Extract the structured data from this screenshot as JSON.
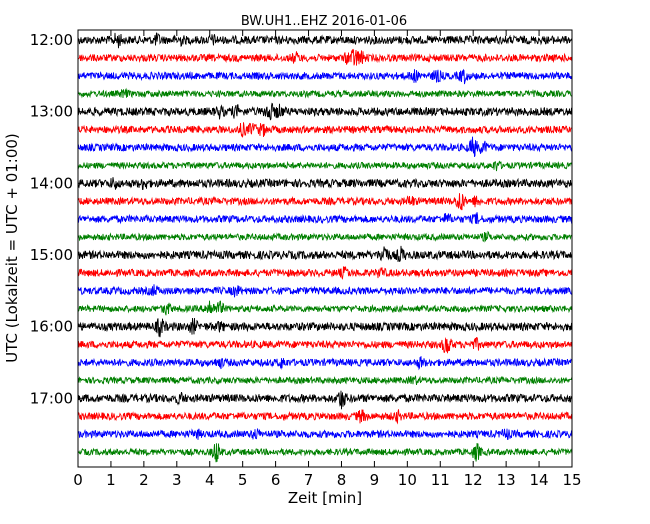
{
  "chart_data": {
    "type": "line",
    "title": "BW.UH1..EHZ 2016-01-06",
    "xlabel": "Zeit  [min]",
    "ylabel": "UTC (Lokalzeit = UTC + 01:00)",
    "xlim": [
      0,
      15
    ],
    "x_ticks": [
      "0",
      "1",
      "2",
      "3",
      "4",
      "5",
      "6",
      "7",
      "8",
      "9",
      "10",
      "11",
      "12",
      "13",
      "14",
      "15"
    ],
    "y_tick_labels": [
      "12:00",
      "13:00",
      "14:00",
      "15:00",
      "16:00",
      "17:00"
    ],
    "grid": false,
    "series_colors": [
      "#000000",
      "#ff0000",
      "#0000ff",
      "#008000"
    ],
    "traces": [
      {
        "start": "12:00",
        "color": "#000000",
        "amplitude": 0.45,
        "events": [
          [
            1.2,
            0.6
          ],
          [
            2.4,
            0.4
          ],
          [
            3.1,
            0.35
          ],
          [
            4.1,
            0.3
          ]
        ]
      },
      {
        "start": "12:15",
        "color": "#ff0000",
        "amplitude": 0.4,
        "events": [
          [
            6.6,
            0.4
          ],
          [
            8.2,
            0.45
          ],
          [
            8.4,
            0.8
          ],
          [
            8.6,
            0.5
          ]
        ]
      },
      {
        "start": "12:30",
        "color": "#0000ff",
        "amplitude": 0.4,
        "events": [
          [
            10.2,
            0.5
          ],
          [
            10.9,
            0.5
          ],
          [
            11.7,
            0.6
          ]
        ]
      },
      {
        "start": "12:45",
        "color": "#008000",
        "amplitude": 0.35,
        "events": [
          [
            1.4,
            0.3
          ]
        ]
      },
      {
        "start": "13:00",
        "color": "#000000",
        "amplitude": 0.45,
        "events": [
          [
            4.3,
            0.45
          ],
          [
            4.8,
            0.45
          ],
          [
            5.8,
            1.0
          ],
          [
            6.1,
            0.5
          ]
        ]
      },
      {
        "start": "13:15",
        "color": "#ff0000",
        "amplitude": 0.4,
        "events": [
          [
            5.0,
            0.5
          ],
          [
            5.3,
            0.5
          ],
          [
            5.6,
            0.5
          ]
        ]
      },
      {
        "start": "13:30",
        "color": "#0000ff",
        "amplitude": 0.4,
        "events": [
          [
            12.0,
            0.9
          ],
          [
            12.3,
            0.5
          ]
        ]
      },
      {
        "start": "13:45",
        "color": "#008000",
        "amplitude": 0.35,
        "events": [
          [
            12.7,
            0.4
          ]
        ]
      },
      {
        "start": "14:00",
        "color": "#000000",
        "amplitude": 0.45,
        "events": [
          [
            1.1,
            0.4
          ],
          [
            2.0,
            0.4
          ]
        ]
      },
      {
        "start": "14:15",
        "color": "#ff0000",
        "amplitude": 0.4,
        "events": [
          [
            10.1,
            0.4
          ],
          [
            11.6,
            1.0
          ],
          [
            12.1,
            0.4
          ]
        ]
      },
      {
        "start": "14:30",
        "color": "#0000ff",
        "amplitude": 0.4,
        "events": [
          [
            11.2,
            0.4
          ],
          [
            12.1,
            0.4
          ]
        ]
      },
      {
        "start": "14:45",
        "color": "#008000",
        "amplitude": 0.35,
        "events": [
          [
            12.4,
            0.3
          ]
        ]
      },
      {
        "start": "15:00",
        "color": "#000000",
        "amplitude": 0.45,
        "events": [
          [
            9.3,
            1.0
          ],
          [
            9.8,
            0.6
          ]
        ]
      },
      {
        "start": "15:15",
        "color": "#ff0000",
        "amplitude": 0.4,
        "events": [
          [
            8.1,
            0.4
          ],
          [
            9.2,
            0.4
          ]
        ]
      },
      {
        "start": "15:30",
        "color": "#0000ff",
        "amplitude": 0.4,
        "events": [
          [
            2.3,
            0.4
          ],
          [
            4.8,
            0.4
          ]
        ]
      },
      {
        "start": "15:45",
        "color": "#008000",
        "amplitude": 0.35,
        "events": [
          [
            2.7,
            0.5
          ],
          [
            4.0,
            0.9
          ],
          [
            4.3,
            0.6
          ]
        ]
      },
      {
        "start": "16:00",
        "color": "#000000",
        "amplitude": 0.45,
        "events": [
          [
            2.5,
            0.8
          ],
          [
            3.5,
            0.6
          ],
          [
            4.3,
            0.3
          ]
        ]
      },
      {
        "start": "16:15",
        "color": "#ff0000",
        "amplitude": 0.4,
        "events": [
          [
            11.2,
            1.0
          ],
          [
            12.1,
            0.4
          ]
        ]
      },
      {
        "start": "16:30",
        "color": "#0000ff",
        "amplitude": 0.4,
        "events": [
          [
            4.3,
            0.4
          ],
          [
            6.2,
            0.4
          ],
          [
            10.4,
            0.4
          ]
        ]
      },
      {
        "start": "16:45",
        "color": "#008000",
        "amplitude": 0.35,
        "events": [
          [
            10.2,
            0.3
          ]
        ]
      },
      {
        "start": "17:00",
        "color": "#000000",
        "amplitude": 0.45,
        "events": [
          [
            8.0,
            0.9
          ],
          [
            3.1,
            0.35
          ]
        ]
      },
      {
        "start": "17:15",
        "color": "#ff0000",
        "amplitude": 0.4,
        "events": [
          [
            8.6,
            0.5
          ],
          [
            9.7,
            0.4
          ]
        ]
      },
      {
        "start": "17:30",
        "color": "#0000ff",
        "amplitude": 0.4,
        "events": [
          [
            3.6,
            0.3
          ],
          [
            5.4,
            0.4
          ],
          [
            13.0,
            0.4
          ]
        ]
      },
      {
        "start": "17:45",
        "color": "#008000",
        "amplitude": 0.35,
        "events": [
          [
            4.2,
            1.0
          ],
          [
            12.1,
            0.8
          ]
        ]
      }
    ]
  }
}
